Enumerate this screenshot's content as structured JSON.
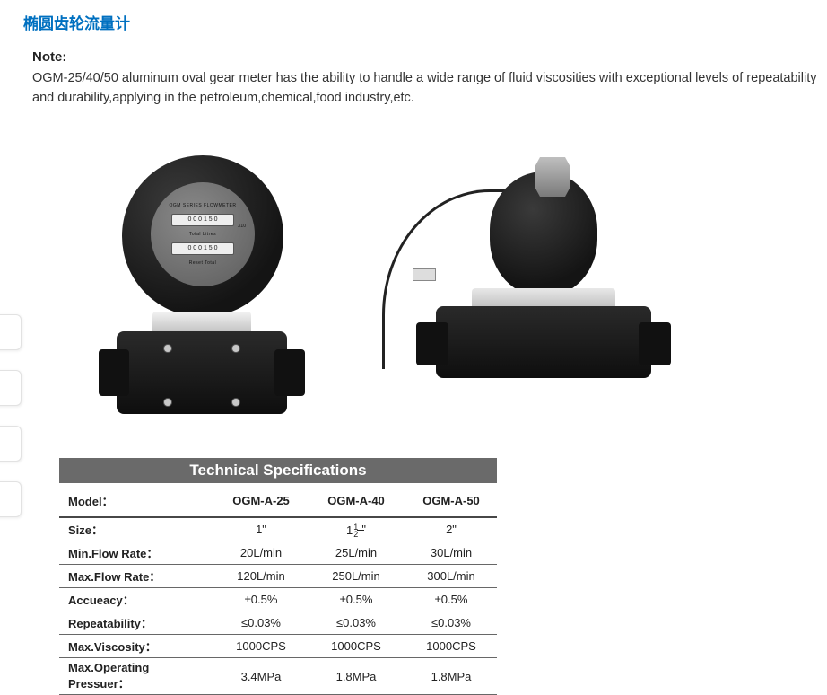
{
  "title": "椭圆齿轮流量计",
  "note_label": "Note:",
  "note_text": "OGM-25/40/50 aluminum oval gear meter has the ability to handle a wide range of fluid viscosities with exceptional levels of repeatability and durability,applying in the petroleum,chemical,food industry,etc.",
  "dial": {
    "brand": "OGM  SERIES  FLOWMETER",
    "line1_label": "Total  Litres",
    "line2_label": "Reset Total",
    "x10": "X10",
    "digits": "0 0 0 1 5 0"
  },
  "spec": {
    "header": "Technical Specifications",
    "columns": [
      "Model：",
      "OGM-A-25",
      "OGM-A-40",
      "OGM-A-50"
    ],
    "rows": [
      {
        "label": "Size：",
        "v": [
          "1\"",
          "1½\"",
          "2\""
        ]
      },
      {
        "label": "Min.Flow Rate：",
        "v": [
          "20L/min",
          "25L/min",
          "30L/min"
        ]
      },
      {
        "label": "Max.Flow Rate：",
        "v": [
          "120L/min",
          "250L/min",
          "300L/min"
        ]
      },
      {
        "label": "Accueacy：",
        "v": [
          "±0.5%",
          "±0.5%",
          "±0.5%"
        ]
      },
      {
        "label": "Repeatability：",
        "v": [
          "≤0.03%",
          "≤0.03%",
          "≤0.03%"
        ]
      },
      {
        "label": "Max.Viscosity：",
        "v": [
          "1000CPS",
          "1000CPS",
          "1000CPS"
        ]
      },
      {
        "label": "Max.Operating Pressuer：",
        "v": [
          "3.4MPa",
          "1.8MPa",
          "1.8MPa"
        ]
      }
    ]
  },
  "colors": {
    "title": "#0070c0",
    "table_header_bg": "#6a6a6a",
    "table_rule": "#676767",
    "text": "#222222"
  }
}
